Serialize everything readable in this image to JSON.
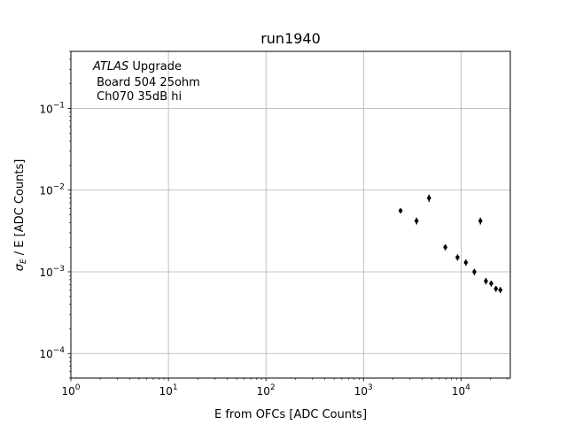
{
  "chart_data": {
    "type": "scatter",
    "title": "run1940",
    "xlabel": "E from OFCs [ADC Counts]",
    "ylabel_main": "σ",
    "ylabel_sub": "E",
    "ylabel_rest": " / E [ADC Counts]",
    "xscale": "log",
    "yscale": "log",
    "xlim": [
      1,
      32000
    ],
    "ylim": [
      5e-05,
      0.5
    ],
    "grid": true,
    "annotation": {
      "experiment": "ATLAS",
      "experiment_suffix": " Upgrade",
      "line2": " Board 504 25ohm",
      "line3": " Ch070 35dB hi"
    },
    "x_ticks": [
      {
        "value": 1,
        "base": "10",
        "exp": "0"
      },
      {
        "value": 10,
        "base": "10",
        "exp": "1"
      },
      {
        "value": 100,
        "base": "10",
        "exp": "2"
      },
      {
        "value": 1000,
        "base": "10",
        "exp": "3"
      },
      {
        "value": 10000,
        "base": "10",
        "exp": "4"
      }
    ],
    "y_ticks": [
      {
        "value": 0.0001,
        "base": "10",
        "exp": "−4"
      },
      {
        "value": 0.001,
        "base": "10",
        "exp": "−3"
      },
      {
        "value": 0.01,
        "base": "10",
        "exp": "−2"
      },
      {
        "value": 0.1,
        "base": "10",
        "exp": "−1"
      }
    ],
    "series": [
      {
        "color": "#000000",
        "points": [
          {
            "x": 2400,
            "y": 0.0056,
            "err": 0.0004
          },
          {
            "x": 3500,
            "y": 0.0042,
            "err": 0.0004
          },
          {
            "x": 4700,
            "y": 0.008,
            "err": 0.0008
          },
          {
            "x": 6900,
            "y": 0.002,
            "err": 0.00017
          },
          {
            "x": 9200,
            "y": 0.0015,
            "err": 0.00013
          },
          {
            "x": 11200,
            "y": 0.0013,
            "err": 0.00011
          },
          {
            "x": 13700,
            "y": 0.001,
            "err": 9e-05
          },
          {
            "x": 15800,
            "y": 0.0042,
            "err": 0.0004
          },
          {
            "x": 18000,
            "y": 0.00077,
            "err": 7e-05
          },
          {
            "x": 20400,
            "y": 0.00072,
            "err": 6e-05
          },
          {
            "x": 22800,
            "y": 0.00062,
            "err": 5e-05
          },
          {
            "x": 25300,
            "y": 0.0006,
            "err": 5e-05
          }
        ]
      }
    ]
  }
}
